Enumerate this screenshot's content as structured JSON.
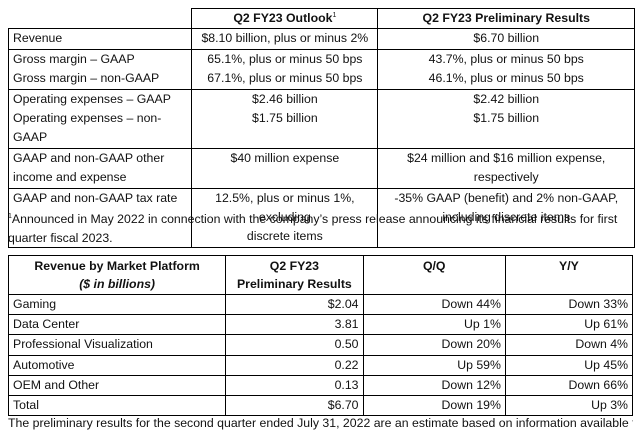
{
  "outlook_table": {
    "header": {
      "col2": "Q2 FY23 Outlook",
      "col2_footnote_mark": "1",
      "col3": "Q2 FY23 Preliminary Results"
    },
    "rows": [
      {
        "label": "Revenue",
        "outlook": "$8.10 billion, plus or minus 2%",
        "prelim": "$6.70 billion"
      },
      {
        "label": "Gross margin – GAAP",
        "outlook": "65.1%, plus or minus 50 bps",
        "prelim": "43.7%, plus or minus 50 bps"
      },
      {
        "label": "Gross margin – non-GAAP",
        "outlook": "67.1%, plus or minus 50 bps",
        "prelim": "46.1%, plus or minus 50 bps"
      },
      {
        "label": "Operating expenses – GAAP",
        "outlook": "$2.46 billion",
        "prelim": "$2.42 billion"
      },
      {
        "label": "Operating expenses – non-GAAP",
        "outlook": "$1.75 billion",
        "prelim": "$1.75 billion"
      },
      {
        "label_line1": "GAAP and non-GAAP other",
        "label_line2": "income and expense",
        "outlook": "$40 million expense",
        "prelim_line1": "$24 million and $16 million expense,",
        "prelim_line2": "respectively"
      },
      {
        "label": "GAAP and non-GAAP tax rate",
        "outlook_line1": "12.5%, plus or minus 1%, excluding",
        "outlook_line2": "discrete items",
        "prelim_line1": "-35% GAAP (benefit) and 2% non-GAAP,",
        "prelim_line2": "including discrete items"
      }
    ]
  },
  "footnote": {
    "mark": "1",
    "text": "Announced in May 2022 in connection with the company’s press release announcing its financial results for first quarter fiscal 2023."
  },
  "platform_table": {
    "header": {
      "col1_line1": "Revenue by Market Platform",
      "col1_line2": "($ in billions)",
      "col2_line1": "Q2 FY23",
      "col2_line2": "Preliminary Results",
      "col3": "Q/Q",
      "col4": "Y/Y"
    },
    "rows": [
      {
        "platform": "Gaming",
        "prelim": "$2.04",
        "qq": "Down 44%",
        "yy": "Down 33%"
      },
      {
        "platform": "Data Center",
        "prelim": "3.81",
        "qq": "Up 1%",
        "yy": "Up 61%"
      },
      {
        "platform": "Professional Visualization",
        "prelim": "0.50",
        "qq": "Down 20%",
        "yy": "Down 4%"
      },
      {
        "platform": "Automotive",
        "prelim": "0.22",
        "qq": "Up 59%",
        "yy": "Up 45%"
      },
      {
        "platform": "OEM and Other",
        "prelim": "0.13",
        "qq": "Down 12%",
        "yy": "Down 66%"
      },
      {
        "platform": "Total",
        "prelim": "$6.70",
        "qq": "Down 19%",
        "yy": "Up 3%"
      }
    ]
  },
  "bottom_text": "The preliminary results for the second quarter ended July 31, 2022 are an estimate based on information available to"
}
